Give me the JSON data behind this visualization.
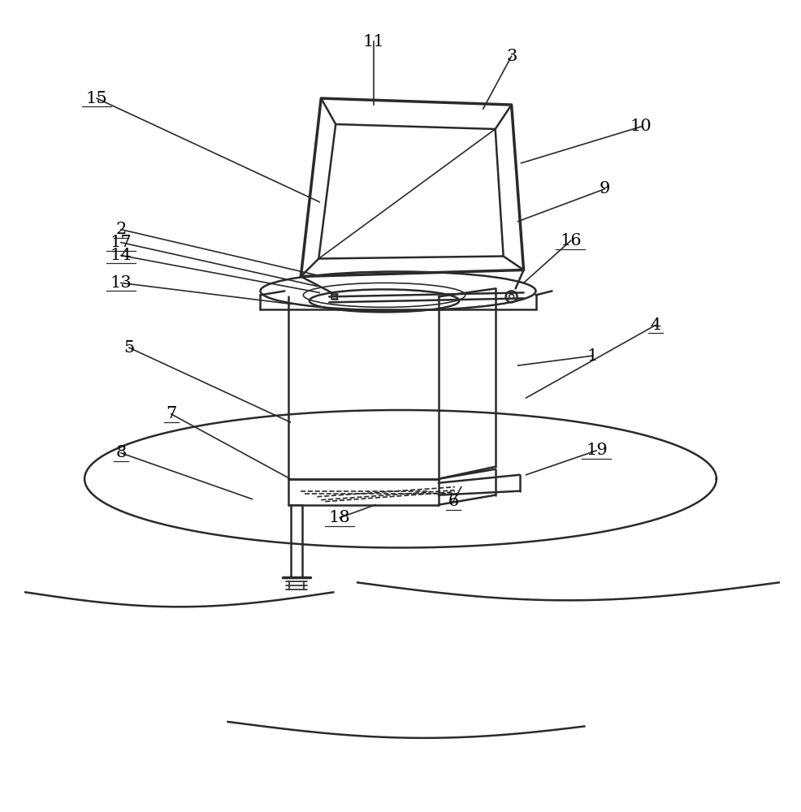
{
  "bg_color": "#ffffff",
  "line_color": "#2a2a2a",
  "label_color": "#000000",
  "figsize": [
    9.87,
    10.0
  ],
  "dpi": 100,
  "label_fontsize": 15,
  "underlined_labels": [
    "2",
    "4",
    "6",
    "7",
    "8",
    "13",
    "14",
    "15",
    "16",
    "17",
    "18",
    "19"
  ]
}
